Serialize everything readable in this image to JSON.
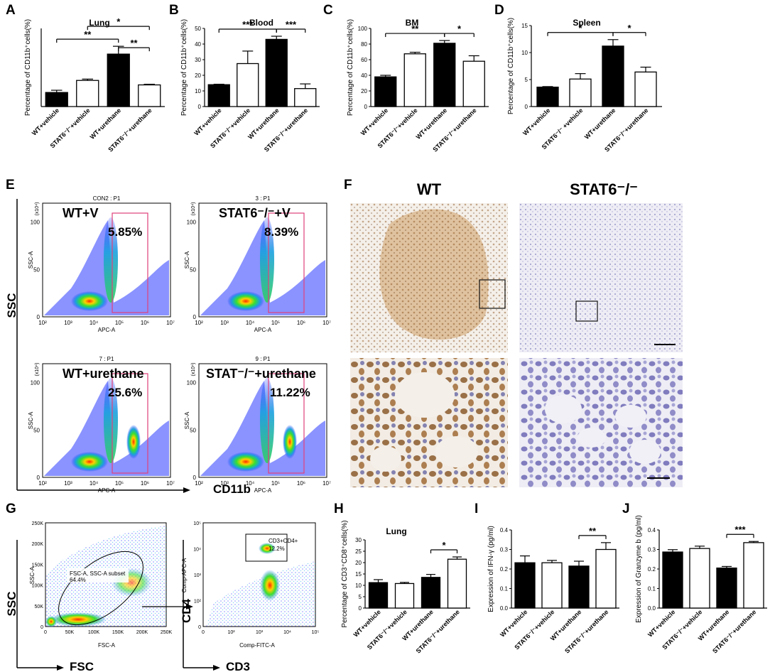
{
  "panels": {
    "A": {
      "letter": "A"
    },
    "B": {
      "letter": "B"
    },
    "C": {
      "letter": "C"
    },
    "D": {
      "letter": "D"
    },
    "E": {
      "letter": "E"
    },
    "F": {
      "letter": "F"
    },
    "G": {
      "letter": "G"
    },
    "H": {
      "letter": "H"
    },
    "I": {
      "letter": "I"
    },
    "J": {
      "letter": "J"
    }
  },
  "colors": {
    "black_bar": "#000000",
    "white_bar": "#ffffff",
    "gate": "#e0407a"
  },
  "chart_data": [
    {
      "id": "A",
      "type": "bar",
      "title": "Lung",
      "ylabel": "Percentage of CD11b⁺cells(%)",
      "categories": [
        "WT+vehicle",
        "STAT6⁻/⁻+vehicle",
        "WT+urethane",
        "STAT6⁻/⁻+urethane"
      ],
      "values": [
        6.3,
        11.7,
        23.5,
        9.7
      ],
      "errors": [
        1.0,
        0.6,
        3.5,
        0.3
      ],
      "fills": [
        "black",
        "white",
        "black",
        "white"
      ],
      "ylim": [
        0,
        35
      ],
      "yticks": [],
      "sig": [
        {
          "from": 0,
          "to": 2,
          "label": "**"
        },
        {
          "from": 1,
          "to": 3,
          "label": "*"
        },
        {
          "from": 2,
          "to": 3,
          "label": "**"
        }
      ]
    },
    {
      "id": "B",
      "type": "bar",
      "title": "Blood",
      "ylabel": "Percentage of CD11b⁺cells(%)",
      "categories": [
        "WT+vehicle",
        "STAT6⁻/⁻+vehicle",
        "WT+urethane",
        "STAT6⁻/⁻+urethane"
      ],
      "values": [
        14,
        27.5,
        43,
        11.5
      ],
      "errors": [
        0.3,
        8,
        2,
        3
      ],
      "fills": [
        "black",
        "white",
        "black",
        "white"
      ],
      "ylim": [
        0,
        50
      ],
      "yticks": [
        "0",
        "10",
        "20",
        "30",
        "40",
        "50"
      ],
      "sig": [
        {
          "from": 0,
          "to": 2,
          "label": "***"
        },
        {
          "from": 2,
          "to": 3,
          "label": "***"
        }
      ]
    },
    {
      "id": "C",
      "type": "bar",
      "title": "BM",
      "ylabel": "Percentage of CD11b⁺cells(%)",
      "categories": [
        "WT+vehicle",
        "STAT6⁻/⁻+vehicle",
        "WT+urethane",
        "STAT6⁻/⁻+urethane"
      ],
      "values": [
        38,
        67.5,
        81,
        58
      ],
      "errors": [
        2,
        2,
        3.5,
        7
      ],
      "fills": [
        "black",
        "white",
        "black",
        "white"
      ],
      "ylim": [
        0,
        100
      ],
      "yticks": [
        "0",
        "20",
        "40",
        "60",
        "80",
        "100"
      ],
      "sig": [
        {
          "from": 0,
          "to": 2,
          "label": "**"
        },
        {
          "from": 2,
          "to": 3,
          "label": "*"
        }
      ]
    },
    {
      "id": "D",
      "type": "bar",
      "title": "Spleen",
      "ylabel": "Percentage of CD11b⁺cells(%)",
      "categories": [
        "WT+vehicle",
        "STAT6⁻/⁻ +vehicle",
        "WT+urethane",
        "STAT6⁻/⁻+urethane"
      ],
      "values": [
        3.6,
        5.1,
        11.2,
        6.4
      ],
      "errors": [
        0.1,
        1.0,
        1.2,
        0.9
      ],
      "fills": [
        "black",
        "white",
        "black",
        "white"
      ],
      "ylim": [
        0,
        15
      ],
      "yticks": [
        "0",
        "5",
        "10",
        "15"
      ],
      "sig": [
        {
          "from": 0,
          "to": 2,
          "label": "*"
        },
        {
          "from": 2,
          "to": 3,
          "label": "*"
        }
      ]
    },
    {
      "id": "H",
      "type": "bar",
      "title": "Lung",
      "ylabel": "Percentage of CD3⁺CD8⁺cells(%)",
      "categories": [
        "WT+vehicle",
        "STAT6⁻/⁻+vehicle",
        "WT+urethane",
        "STAT6⁻/⁻+urethane"
      ],
      "values": [
        11.2,
        10.8,
        13.5,
        21.5
      ],
      "errors": [
        1.3,
        0.5,
        1.3,
        1.0
      ],
      "fills": [
        "black",
        "white",
        "black",
        "white"
      ],
      "ylim": [
        0,
        30
      ],
      "yticks": [
        "0",
        "5",
        "10",
        "15",
        "20",
        "25",
        "30"
      ],
      "sig": [
        {
          "from": 2,
          "to": 3,
          "label": "*"
        }
      ]
    },
    {
      "id": "I",
      "type": "bar",
      "title": "",
      "ylabel": "Expression of IFN-γ (pg/ml)",
      "categories": [
        "WT+vehicle",
        "STAT6⁻/⁻+vehicle",
        "WT+urethane",
        "STAT6⁻/⁻+urethane"
      ],
      "values": [
        0.232,
        0.232,
        0.215,
        0.3
      ],
      "errors": [
        0.035,
        0.012,
        0.025,
        0.035
      ],
      "fills": [
        "black",
        "white",
        "black",
        "white"
      ],
      "ylim": [
        0,
        0.4
      ],
      "yticks": [
        "0.0",
        "0.1",
        "0.2",
        "0.3",
        "0.4"
      ],
      "sig": [
        {
          "from": 2,
          "to": 3,
          "label": "**"
        }
      ]
    },
    {
      "id": "J",
      "type": "bar",
      "title": "",
      "ylabel": "Expression of Granzyme b (pg/ml)",
      "categories": [
        "WT+vehicle",
        "STAT6⁻/⁻+vehicle",
        "WT+urethane",
        "STAT6⁻/⁻+urethane"
      ],
      "values": [
        0.287,
        0.305,
        0.205,
        0.335
      ],
      "errors": [
        0.012,
        0.012,
        0.008,
        0.006
      ],
      "fills": [
        "black",
        "white",
        "black",
        "white"
      ],
      "ylim": [
        0,
        0.4
      ],
      "yticks": [
        "0.0",
        "0.1",
        "0.2",
        "0.3",
        "0.4"
      ],
      "sig": [
        {
          "from": 2,
          "to": 3,
          "label": "***"
        }
      ]
    }
  ],
  "flow_E": {
    "axis_y": "SSC",
    "axis_x": "CD11b",
    "plots": [
      {
        "header": "CON2 : P1",
        "group": "WT+V",
        "percent": "5.85%"
      },
      {
        "header": "3 : P1",
        "group": "STAT6⁻/⁻+V",
        "percent": "8.39%"
      },
      {
        "header": "7 : P1",
        "group": "WT+urethane",
        "percent": "25.6%"
      },
      {
        "header": "9 : P1",
        "group": "STAT⁻/⁻+urethane",
        "percent": "11.22%"
      }
    ],
    "inner_ylabel": "SSC-A",
    "inner_xlabel": "APC-A",
    "yexp": "(x10⁴)",
    "yticks": [
      "0",
      "50",
      "100"
    ],
    "xticks": [
      "10²",
      "10³",
      "10⁴",
      "10⁵",
      "10⁶",
      "10⁷"
    ]
  },
  "histology_F": {
    "left": "WT",
    "right": "STAT6⁻/⁻"
  },
  "flow_G": {
    "left": {
      "gate_label": "FSC-A, SSC-A subset",
      "gate_value": "64.4%",
      "inner_ylabel": "SSC-A",
      "inner_xlabel": "FSC-A",
      "yticks": [
        "0",
        "50K",
        "100K",
        "150K",
        "200K",
        "250K"
      ],
      "xticks": [
        "0",
        "50K",
        "100K",
        "150K",
        "200K",
        "250K"
      ],
      "axis_y": "SSC",
      "axis_x": "FSC"
    },
    "right": {
      "gate_label": "CD3+CD4+",
      "gate_value": "12.2%",
      "inner_ylabel": "Comp-APC-A",
      "inner_xlabel": "Comp-FITC-A",
      "yticks": [
        "0",
        "10²",
        "10³",
        "10⁴",
        "10⁵"
      ],
      "xticks": [
        "0",
        "10²",
        "10³",
        "10⁴",
        "10⁵"
      ],
      "axis_y": "CD4",
      "axis_x": "CD3"
    }
  }
}
